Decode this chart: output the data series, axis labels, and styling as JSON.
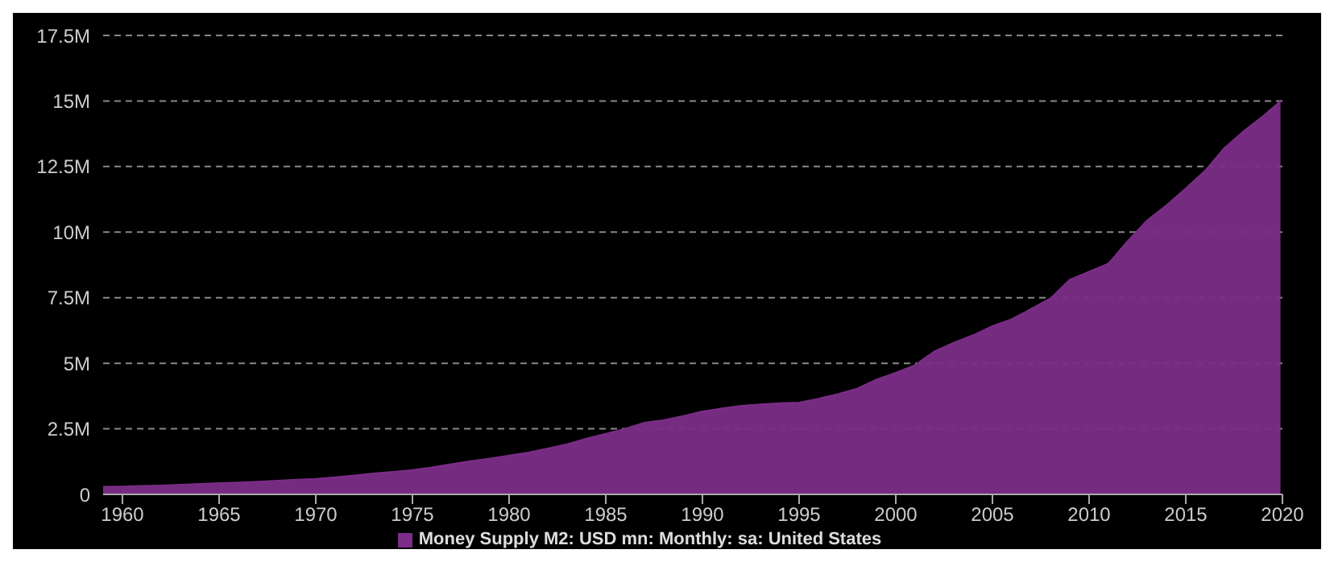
{
  "chart_data": {
    "type": "area",
    "x": [
      1959,
      1960,
      1961,
      1962,
      1963,
      1964,
      1965,
      1966,
      1967,
      1968,
      1969,
      1970,
      1971,
      1972,
      1973,
      1974,
      1975,
      1976,
      1977,
      1978,
      1979,
      1980,
      1981,
      1982,
      1983,
      1984,
      1985,
      1986,
      1987,
      1988,
      1989,
      1990,
      1991,
      1992,
      1993,
      1994,
      1995,
      1996,
      1997,
      1998,
      1999,
      2000,
      2001,
      2002,
      2003,
      2004,
      2005,
      2006,
      2007,
      2008,
      2009,
      2010,
      2011,
      2012,
      2013,
      2014,
      2015,
      2016,
      2017,
      2018,
      2019,
      2019.9
    ],
    "series": [
      {
        "name": "Money Supply M2: USD mn: Monthly: sa: United States",
        "color": "#7b2d87",
        "values": [
          290000,
          300000,
          320000,
          340000,
          370000,
          400000,
          430000,
          450000,
          480000,
          520000,
          560000,
          590000,
          650000,
          720000,
          800000,
          860000,
          930000,
          1030000,
          1150000,
          1270000,
          1370000,
          1480000,
          1600000,
          1750000,
          1910000,
          2130000,
          2310000,
          2500000,
          2730000,
          2830000,
          2990000,
          3160000,
          3280000,
          3380000,
          3430000,
          3480000,
          3500000,
          3650000,
          3820000,
          4030000,
          4380000,
          4640000,
          4930000,
          5450000,
          5780000,
          6070000,
          6420000,
          6680000,
          7070000,
          7470000,
          8190000,
          8490000,
          8800000,
          9660000,
          10450000,
          11020000,
          11670000,
          12340000,
          13210000,
          13850000,
          14420000,
          15000000
        ]
      }
    ],
    "xlim": [
      1959,
      2020
    ],
    "xticks": [
      1960,
      1965,
      1970,
      1975,
      1980,
      1985,
      1990,
      1995,
      2000,
      2005,
      2010,
      2015,
      2020
    ],
    "ylim": [
      0,
      17500000
    ],
    "yticks": [
      0,
      {
        "value": 2500000,
        "label": "2.5M"
      },
      {
        "value": 5000000,
        "label": "5M"
      },
      {
        "value": 7500000,
        "label": "7.5M"
      },
      {
        "value": 10000000,
        "label": "10M"
      },
      {
        "value": 12500000,
        "label": "12.5M"
      },
      {
        "value": 15000000,
        "label": "15M"
      },
      {
        "value": 17500000,
        "label": "17.5M"
      }
    ],
    "grid": "y",
    "legend": "bottom"
  }
}
